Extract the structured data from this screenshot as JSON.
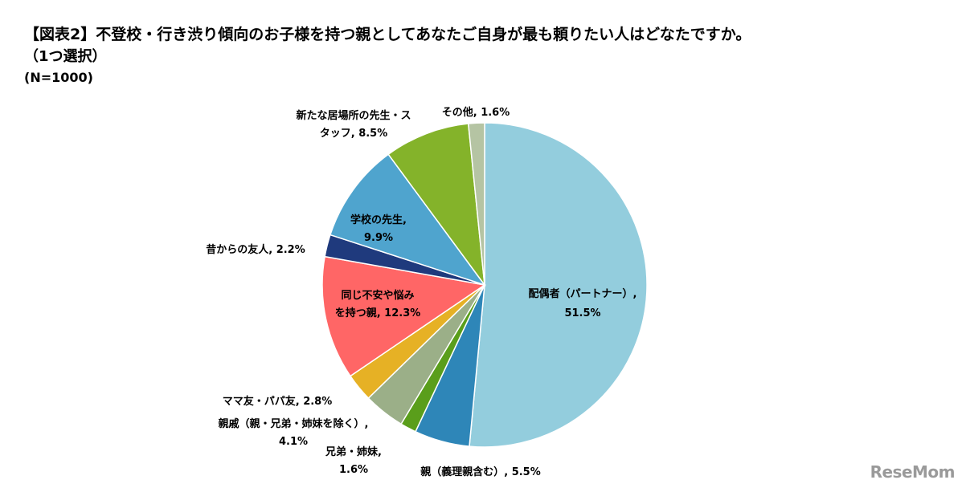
{
  "title": {
    "line1": "【図表2】不登校・行き渋り傾向のお子様を持つ親としてあなたご自身が最も頼りたい人はどなたですか。",
    "line2": "（1つ選択）",
    "line3": "(N=1000)"
  },
  "watermark": "ReseMom",
  "chart_data": {
    "type": "pie",
    "title": "【図表2】不登校・行き渋り傾向のお子様を持つ親としてあなたご自身が最も頼りたい人はどなたですか。",
    "subtitle": "（1つ選択） (N=1000)",
    "start": "12 o'clock, clockwise",
    "slices": [
      {
        "label": "配偶者（パートナー）",
        "value": 51.5,
        "color": "#93CDDD",
        "label_lines": [
          "配偶者（パートナー）,",
          "51.5%"
        ]
      },
      {
        "label": "親（義理親含む）",
        "value": 5.5,
        "color": "#2E86B8",
        "label_lines": [
          "親（義理親含む）, 5.5%"
        ]
      },
      {
        "label": "兄弟・姉妹",
        "value": 1.6,
        "color": "#5A9E1B",
        "label_lines": [
          "兄弟・姉妹,",
          "1.6%"
        ]
      },
      {
        "label": "親戚（親・兄弟・姉妹を除く）",
        "value": 4.1,
        "color": "#9BAF88",
        "label_lines": [
          "親戚（親・兄弟・姉妹を除く）,",
          "4.1%"
        ]
      },
      {
        "label": "ママ友・パパ友",
        "value": 2.8,
        "color": "#E6B125",
        "label_lines": [
          "ママ友・パパ友, 2.8%"
        ]
      },
      {
        "label": "同じ不安や悩みを持つ親",
        "value": 12.3,
        "color": "#FF6666",
        "label_lines": [
          "同じ不安や悩み",
          "を持つ親, 12.3%"
        ]
      },
      {
        "label": "昔からの友人",
        "value": 2.2,
        "color": "#1F3A7D",
        "label_lines": [
          "昔からの友人, 2.2%"
        ]
      },
      {
        "label": "学校の先生",
        "value": 9.9,
        "color": "#4FA4CE",
        "label_lines": [
          "学校の先生,",
          "9.9%"
        ]
      },
      {
        "label": "新たな居場所の先生・スタッフ",
        "value": 8.5,
        "color": "#84B32A",
        "label_lines": [
          "新たな居場所の先生・ス",
          "タッフ, 8.5%"
        ]
      },
      {
        "label": "その他",
        "value": 1.6,
        "color": "#B5C4A3",
        "label_lines": [
          "その他, 1.6%"
        ]
      }
    ]
  }
}
